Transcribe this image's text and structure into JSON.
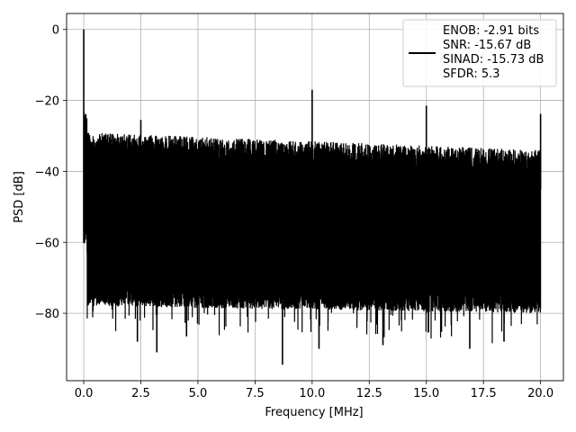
{
  "chart_data": {
    "type": "line",
    "title": "",
    "xlabel": "Frequency [MHz]",
    "ylabel": "PSD [dB]",
    "xlim": [
      -0.75,
      21.0
    ],
    "ylim": [
      -99,
      4.5
    ],
    "xticks": [
      0.0,
      2.5,
      5.0,
      7.5,
      10.0,
      12.5,
      15.0,
      17.5,
      20.0
    ],
    "xtick_labels": [
      "0.0",
      "2.5",
      "5.0",
      "7.5",
      "10.0",
      "12.5",
      "15.0",
      "17.5",
      "20.0"
    ],
    "yticks": [
      0,
      -20,
      -40,
      -60,
      -80
    ],
    "ytick_labels": [
      "0",
      "−20",
      "−40",
      "−60",
      "−80"
    ],
    "grid": true,
    "legend_position": "top-right",
    "series": [
      {
        "color": "#000000",
        "legend_lines": [
          "ENOB: -2.91 bits",
          "SNR: -15.67 dB",
          "SINAD: -15.73 dB",
          "SFDR: 5.3"
        ],
        "peaks": [
          {
            "x": 0.0,
            "y": 0.0
          },
          {
            "x": 2.5,
            "y": -25.5
          },
          {
            "x": 10.0,
            "y": -17.0
          },
          {
            "x": 15.0,
            "y": -21.5
          },
          {
            "x": 20.0,
            "y": -23.8
          }
        ],
        "noise_upper_start": -29,
        "noise_upper_end": -34,
        "noise_lower_start": -72,
        "noise_lower_end": -74,
        "deep_dips": [
          {
            "x": 0.4,
            "y": -79.5
          },
          {
            "x": 2.35,
            "y": -88
          },
          {
            "x": 3.2,
            "y": -91
          },
          {
            "x": 4.5,
            "y": -86.5
          },
          {
            "x": 8.7,
            "y": -94.5
          },
          {
            "x": 10.3,
            "y": -90
          },
          {
            "x": 13.1,
            "y": -89
          },
          {
            "x": 16.9,
            "y": -90
          },
          {
            "x": 18.4,
            "y": -88
          }
        ]
      }
    ]
  }
}
